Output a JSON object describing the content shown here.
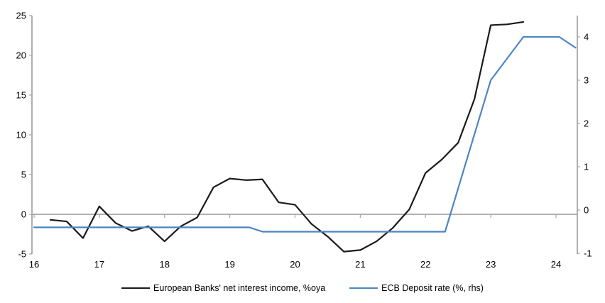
{
  "colors": {
    "axis_gray": "#a6a6a6",
    "text": "#000000",
    "background": "#ffffff",
    "nii_line": "#1a1a1a",
    "ecb_line": "#4d85c2"
  },
  "chart_data": {
    "type": "line",
    "title": "",
    "xlabel": "",
    "ylabel_left": "",
    "ylabel_right": "",
    "grid": false,
    "zero_line": true,
    "legend_position": "bottom",
    "x_axis": {
      "ticks": [
        16,
        17,
        18,
        19,
        20,
        21,
        22,
        23,
        24
      ],
      "range": [
        15.97,
        24.33
      ]
    },
    "left_axis": {
      "ticks": [
        25,
        20,
        15,
        10,
        5,
        0,
        -5
      ],
      "range": [
        -5,
        25
      ]
    },
    "right_axis": {
      "ticks": [
        4,
        3,
        2,
        1,
        0,
        -1
      ],
      "range": [
        -1.1,
        4.5
      ]
    },
    "series": [
      {
        "name": "European Banks' net interest income, %oya",
        "axis": "left",
        "color": "#1a1a1a",
        "x": [
          16.25,
          16.5,
          16.75,
          17.0,
          17.25,
          17.5,
          17.75,
          18.0,
          18.25,
          18.5,
          18.75,
          19.0,
          19.25,
          19.5,
          19.75,
          20.0,
          20.25,
          20.5,
          20.75,
          21.0,
          21.25,
          21.5,
          21.75,
          22.0,
          22.25,
          22.5,
          22.75,
          23.0,
          23.25,
          23.5
        ],
        "values": [
          -0.7,
          -0.9,
          -3.0,
          1.0,
          -1.1,
          -2.1,
          -1.5,
          -3.4,
          -1.5,
          -0.4,
          3.4,
          4.5,
          4.3,
          4.4,
          1.5,
          1.2,
          -1.2,
          -2.8,
          -4.7,
          -4.5,
          -3.4,
          -1.7,
          0.6,
          5.2,
          6.9,
          9.0,
          14.5,
          23.8,
          23.9,
          24.2
        ]
      },
      {
        "name": "ECB Deposit rate (%, rhs)",
        "axis": "right",
        "color": "#4d85c2",
        "x": [
          16.0,
          19.3,
          19.5,
          22.3,
          23.0,
          23.5,
          24.05,
          24.3
        ],
        "values": [
          -0.4,
          -0.4,
          -0.5,
          -0.5,
          3.0,
          4.0,
          4.0,
          3.75
        ]
      }
    ]
  }
}
